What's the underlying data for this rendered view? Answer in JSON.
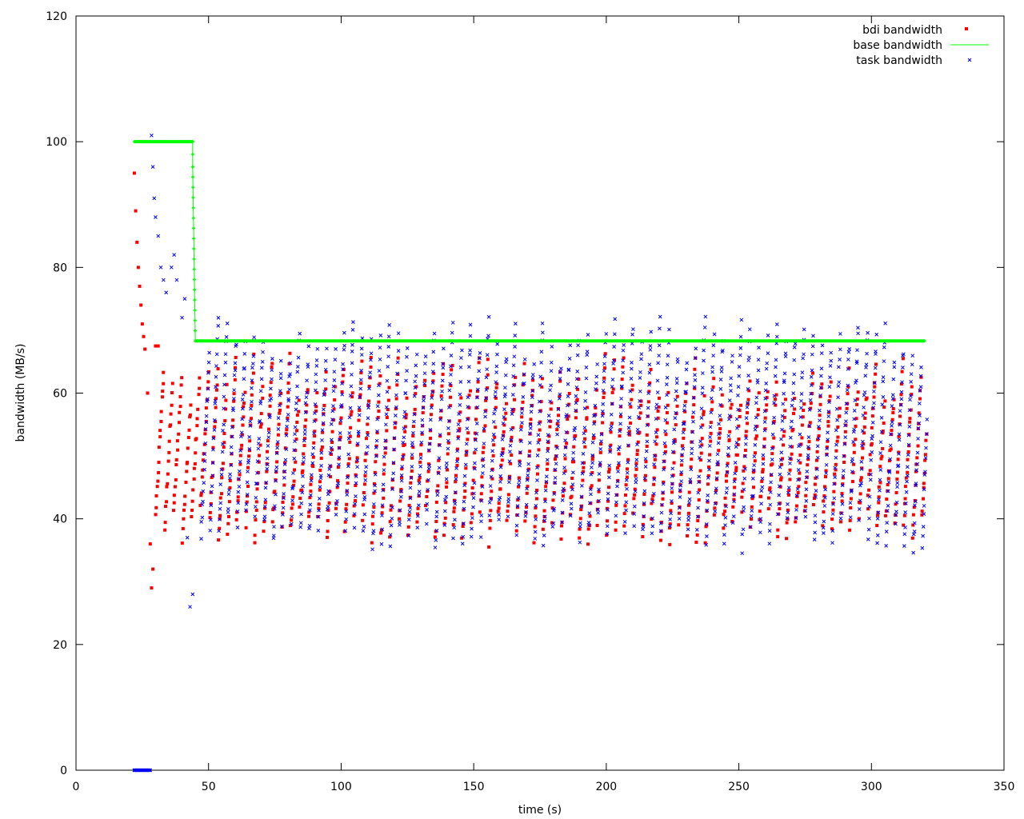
{
  "chart_data": {
    "type": "scatter",
    "xlabel": "time (s)",
    "ylabel": "bandwidth (MB/s)",
    "xlim": [
      0,
      350
    ],
    "ylim": [
      0,
      120
    ],
    "xticks": [
      0,
      50,
      100,
      150,
      200,
      250,
      300,
      350
    ],
    "yticks": [
      0,
      20,
      40,
      60,
      80,
      100,
      120
    ],
    "grid": false,
    "legend_position": "top-right",
    "series": [
      {
        "name": "bdi bandwidth",
        "marker": "square",
        "color": "#ff0000",
        "description_points": [
          [
            22,
            95
          ],
          [
            22.5,
            89
          ],
          [
            23,
            84
          ],
          [
            23.5,
            80
          ],
          [
            24,
            77
          ],
          [
            24.5,
            74
          ],
          [
            25,
            71
          ],
          [
            25.5,
            69
          ],
          [
            26,
            67
          ],
          [
            27,
            60
          ],
          [
            28,
            36
          ],
          [
            28.5,
            29
          ],
          [
            29,
            32
          ],
          [
            30,
            67.5
          ],
          [
            31,
            67.5
          ]
        ],
        "sawtooth": {
          "x_start": 30,
          "x_end": 321,
          "period": 3.4,
          "y_low": 36,
          "y_high": 66,
          "points_per_cycle": 16
        }
      },
      {
        "name": "base bandwidth",
        "marker": "plus-line",
        "color": "#00ff00",
        "x": [
          22,
          44,
          44,
          45,
          320
        ],
        "y": [
          100,
          100,
          96,
          68.3,
          68.3
        ]
      },
      {
        "name": "task bandwidth",
        "marker": "cross",
        "color": "#0000ff",
        "description_points": [
          [
            22,
            0
          ],
          [
            28,
            0
          ],
          [
            28.5,
            101
          ],
          [
            29,
            96
          ],
          [
            29.5,
            91
          ],
          [
            30,
            88
          ],
          [
            31,
            85
          ],
          [
            32,
            80
          ],
          [
            33,
            78
          ],
          [
            34,
            76
          ],
          [
            36,
            80
          ],
          [
            37,
            82
          ],
          [
            38,
            78
          ],
          [
            40,
            72
          ],
          [
            41,
            75
          ],
          [
            42,
            37
          ],
          [
            43,
            26
          ],
          [
            44,
            28
          ]
        ],
        "sawtooth": {
          "x_start": 46,
          "x_end": 321,
          "period": 3.4,
          "y_low": 35,
          "y_high": 72,
          "points_per_cycle": 20
        }
      }
    ]
  }
}
